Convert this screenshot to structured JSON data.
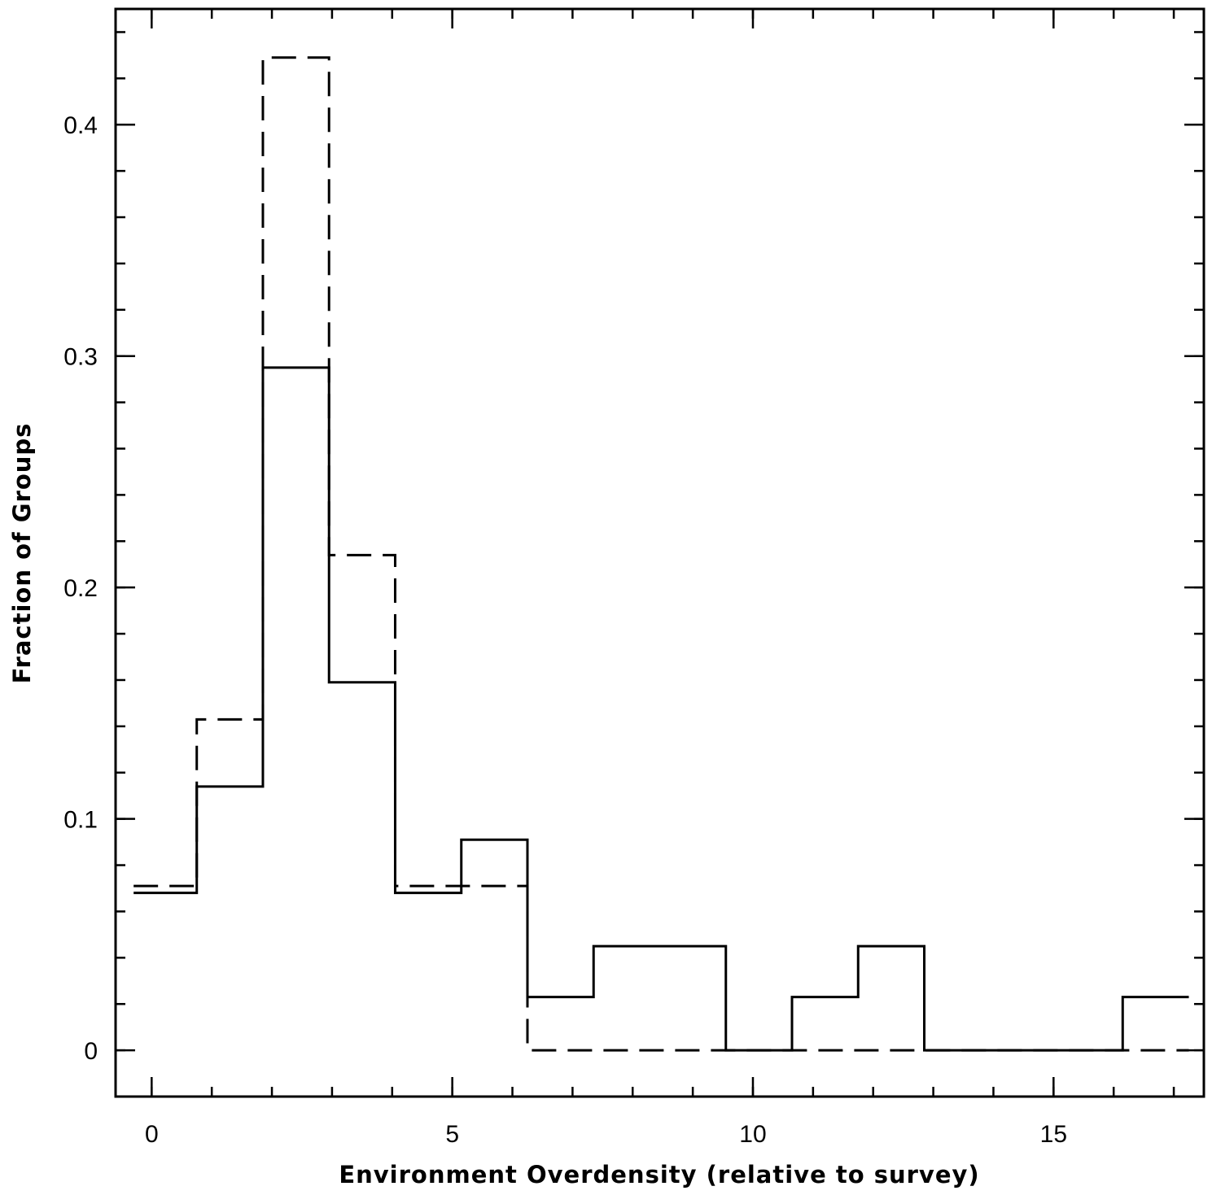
{
  "chart_data": {
    "type": "histogram",
    "title": "",
    "xlabel": "Environment Overdensity (relative to survey)",
    "ylabel": "Fraction of Groups",
    "xlim": [
      -0.6,
      17.5
    ],
    "ylim": [
      -0.02,
      0.45
    ],
    "x_ticks": [
      0,
      5,
      10,
      15
    ],
    "x_tick_labels": [
      "0",
      "5",
      "10",
      "15"
    ],
    "y_ticks": [
      0,
      0.1,
      0.2,
      0.3,
      0.4
    ],
    "y_tick_labels": [
      "0",
      "0.1",
      "0.2",
      "0.3",
      "0.4"
    ],
    "grid": false,
    "legend": "none",
    "series": [
      {
        "style": "solid",
        "bins": [
          {
            "x0": -0.3,
            "x1": 0.75,
            "value": 0.068
          },
          {
            "x0": 0.75,
            "x1": 1.85,
            "value": 0.114
          },
          {
            "x0": 1.85,
            "x1": 2.95,
            "value": 0.295
          },
          {
            "x0": 2.95,
            "x1": 4.05,
            "value": 0.159
          },
          {
            "x0": 4.05,
            "x1": 5.15,
            "value": 0.068
          },
          {
            "x0": 5.15,
            "x1": 6.25,
            "value": 0.091
          },
          {
            "x0": 6.25,
            "x1": 7.35,
            "value": 0.023
          },
          {
            "x0": 7.35,
            "x1": 9.55,
            "value": 0.045
          },
          {
            "x0": 9.55,
            "x1": 10.65,
            "value": 0.0
          },
          {
            "x0": 10.65,
            "x1": 11.75,
            "value": 0.023
          },
          {
            "x0": 11.75,
            "x1": 12.85,
            "value": 0.045
          },
          {
            "x0": 12.85,
            "x1": 16.15,
            "value": 0.0
          },
          {
            "x0": 16.15,
            "x1": 17.25,
            "value": 0.023
          }
        ]
      },
      {
        "style": "dashed",
        "bins": [
          {
            "x0": -0.3,
            "x1": 0.75,
            "value": 0.071
          },
          {
            "x0": 0.75,
            "x1": 1.85,
            "value": 0.143
          },
          {
            "x0": 1.85,
            "x1": 2.95,
            "value": 0.429
          },
          {
            "x0": 2.95,
            "x1": 4.05,
            "value": 0.214
          },
          {
            "x0": 4.05,
            "x1": 6.25,
            "value": 0.071
          },
          {
            "x0": 6.25,
            "x1": 17.25,
            "value": 0.0
          }
        ]
      }
    ]
  }
}
